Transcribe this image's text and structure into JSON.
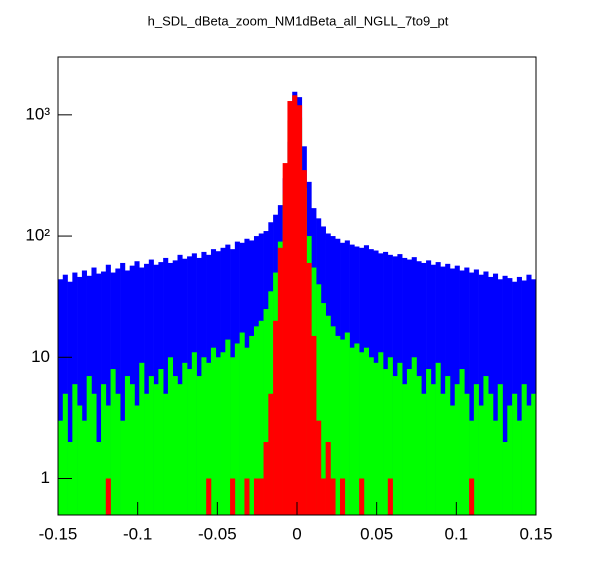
{
  "chart_data": {
    "type": "histogram",
    "title": "h_SDL_dBeta_zoom_NM1dBeta_all_NGLL_7to9_pt",
    "log_y": true,
    "bins": [
      -0.15,
      -0.147,
      -0.144,
      -0.141,
      -0.138,
      -0.135,
      -0.132,
      -0.129,
      -0.126,
      -0.123,
      -0.12,
      -0.117,
      -0.114,
      -0.111,
      -0.108,
      -0.105,
      -0.102,
      -0.099,
      -0.096,
      -0.093,
      -0.09,
      -0.087,
      -0.084,
      -0.081,
      -0.078,
      -0.075,
      -0.072,
      -0.069,
      -0.066,
      -0.063,
      -0.06,
      -0.057,
      -0.054,
      -0.051,
      -0.048,
      -0.045,
      -0.042,
      -0.039,
      -0.036,
      -0.033,
      -0.03,
      -0.027,
      -0.024,
      -0.021,
      -0.018,
      -0.015,
      -0.012,
      -0.009,
      -0.006,
      -0.003,
      0,
      0.003,
      0.006,
      0.009,
      0.012,
      0.015,
      0.018,
      0.021,
      0.024,
      0.027,
      0.03,
      0.033,
      0.036,
      0.039,
      0.042,
      0.045,
      0.048,
      0.051,
      0.054,
      0.057,
      0.06,
      0.063,
      0.066,
      0.069,
      0.072,
      0.075,
      0.078,
      0.081,
      0.084,
      0.087,
      0.09,
      0.093,
      0.096,
      0.099,
      0.102,
      0.105,
      0.108,
      0.111,
      0.114,
      0.117,
      0.12,
      0.123,
      0.126,
      0.129,
      0.132,
      0.135,
      0.138,
      0.141,
      0.144,
      0.147,
      0.15
    ],
    "series": [
      {
        "color": "#0000ff",
        "values": [
          44,
          48,
          42,
          50,
          46,
          52,
          47,
          55,
          49,
          51,
          58,
          50,
          54,
          60,
          52,
          57,
          62,
          55,
          59,
          64,
          58,
          61,
          66,
          60,
          63,
          70,
          65,
          68,
          72,
          66,
          74,
          70,
          78,
          75,
          80,
          85,
          78,
          90,
          88,
          95,
          92,
          100,
          105,
          110,
          130,
          150,
          180,
          300,
          600,
          1550,
          1400,
          550,
          280,
          170,
          140,
          120,
          105,
          100,
          95,
          88,
          92,
          85,
          82,
          80,
          84,
          78,
          76,
          72,
          74,
          70,
          68,
          71,
          66,
          64,
          67,
          62,
          60,
          63,
          58,
          61,
          56,
          59,
          54,
          57,
          52,
          55,
          50,
          53,
          48,
          51,
          46,
          49,
          44,
          47,
          45,
          42,
          46,
          43,
          48,
          44
        ]
      },
      {
        "color": "#00ff00",
        "values": [
          3,
          5,
          2,
          6,
          4,
          3,
          7,
          5,
          2,
          6,
          4,
          8,
          5,
          3,
          7,
          6,
          4,
          9,
          5,
          7,
          6,
          8,
          5,
          10,
          7,
          6,
          9,
          8,
          11,
          7,
          10,
          9,
          12,
          10,
          11,
          14,
          10,
          13,
          16,
          12,
          15,
          18,
          20,
          25,
          35,
          50,
          90,
          220,
          900,
          1100,
          950,
          250,
          100,
          55,
          40,
          28,
          22,
          18,
          15,
          14,
          16,
          12,
          13,
          11,
          12,
          10,
          9,
          11,
          8,
          10,
          7,
          9,
          6,
          8,
          10,
          7,
          5,
          8,
          6,
          9,
          5,
          7,
          4,
          6,
          8,
          5,
          3,
          6,
          4,
          7,
          5,
          3,
          6,
          2,
          4,
          5,
          3,
          6,
          4,
          5
        ]
      },
      {
        "color": "#ff0000",
        "values": [
          0,
          0,
          0,
          0,
          0,
          0,
          0,
          0,
          0,
          0,
          1,
          0,
          0,
          0,
          0,
          0,
          0,
          0,
          0,
          0,
          0,
          0,
          0,
          0,
          0,
          0,
          0,
          0,
          0,
          0,
          0,
          1,
          0,
          0,
          0,
          0,
          1,
          0,
          0,
          1,
          0,
          1,
          1,
          2,
          5,
          20,
          80,
          400,
          1300,
          1450,
          1200,
          350,
          60,
          15,
          3,
          1,
          2,
          1,
          0,
          1,
          0,
          0,
          0,
          1,
          0,
          0,
          0,
          0,
          0,
          1,
          0,
          0,
          0,
          0,
          0,
          0,
          0,
          0,
          0,
          0,
          0,
          0,
          0,
          0,
          0,
          0,
          1,
          0,
          0,
          0,
          0,
          0,
          0,
          0,
          0,
          0,
          0,
          0,
          0,
          0
        ]
      }
    ],
    "xlim": [
      -0.15,
      0.15
    ],
    "xticks": [
      -0.15,
      -0.1,
      -0.05,
      0,
      0.05,
      0.1,
      0.15
    ],
    "ylim": [
      0.5,
      3000
    ],
    "yticks": [
      1,
      10,
      {
        "value": 100,
        "label": "10²"
      },
      {
        "value": 1000,
        "label": "10³"
      }
    ]
  }
}
